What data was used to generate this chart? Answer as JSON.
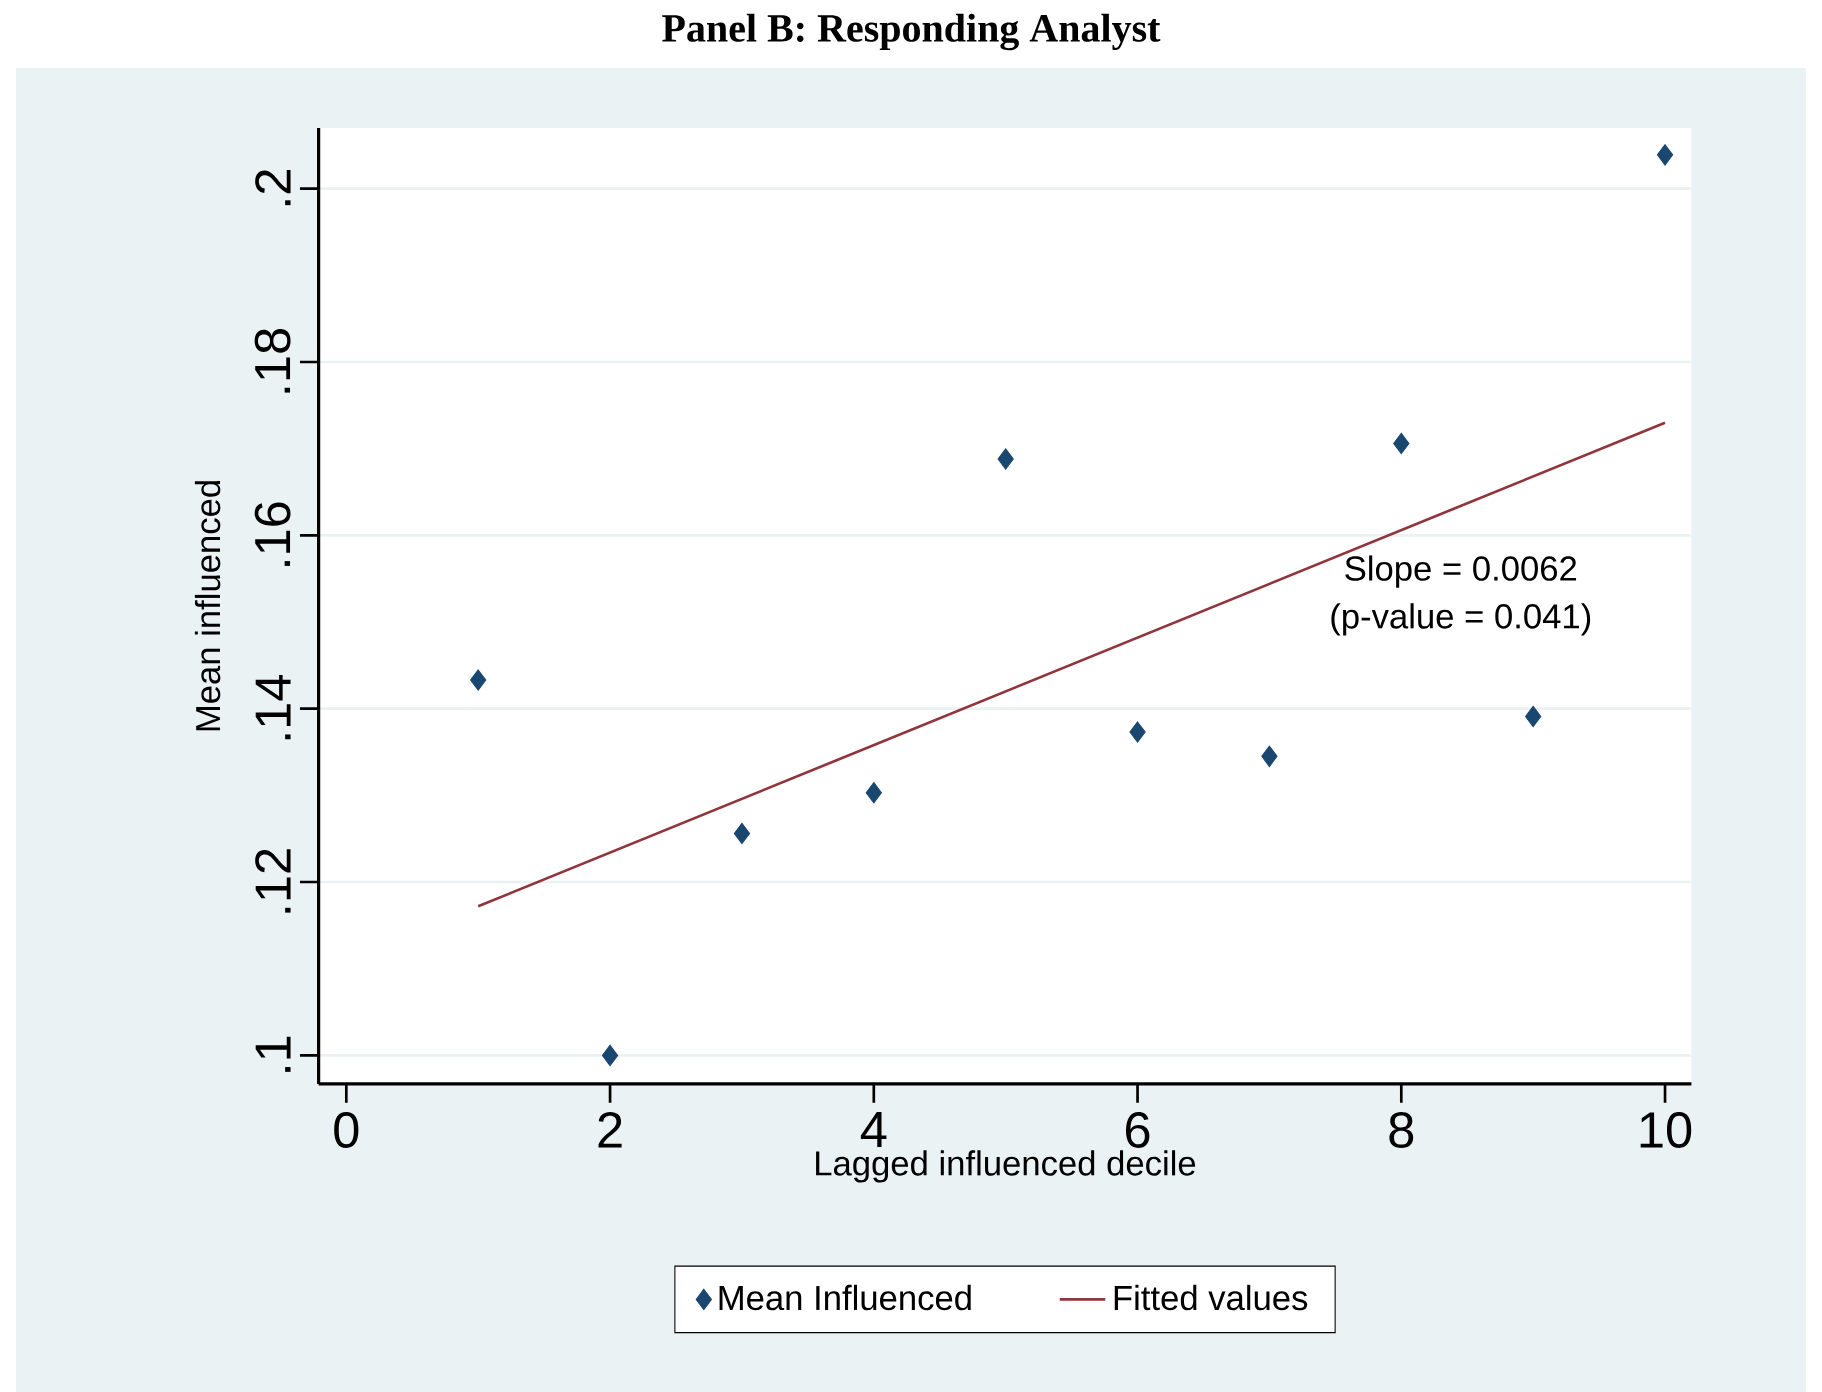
{
  "chart_data": {
    "type": "scatter",
    "title": "Panel B: Responding Analyst",
    "xlabel": "Lagged influenced decile",
    "ylabel": "Mean influenced",
    "x": [
      1,
      2,
      3,
      4,
      5,
      6,
      7,
      8,
      9,
      10
    ],
    "series": [
      {
        "name": "Mean Influenced",
        "color": "#1a476f",
        "marker": "diamond",
        "values": [
          0.1433,
          0.1,
          0.1256,
          0.1303,
          0.1688,
          0.1373,
          0.1345,
          0.1706,
          0.1391,
          0.2039
        ]
      },
      {
        "name": "Fitted values",
        "type": "line",
        "color": "#90353b",
        "marker": "none",
        "line_style": "solid",
        "x": [
          1,
          10
        ],
        "values": [
          0.1172,
          0.173
        ]
      }
    ],
    "annotations": [
      "Slope = 0.0062",
      "(p-value = 0.041)"
    ],
    "xlim": [
      -0.21,
      10.2
    ],
    "ylim": [
      0.0967,
      0.207
    ],
    "xticks": [
      0,
      2,
      4,
      6,
      8,
      10
    ],
    "yticks": [
      {
        "value": 0.1,
        "label": ".1"
      },
      {
        "value": 0.12,
        "label": ".12"
      },
      {
        "value": 0.14,
        "label": ".14"
      },
      {
        "value": 0.16,
        "label": ".16"
      },
      {
        "value": 0.18,
        "label": ".18"
      },
      {
        "value": 0.2,
        "label": ".2"
      }
    ],
    "grid": "y",
    "legend": "bottom"
  }
}
